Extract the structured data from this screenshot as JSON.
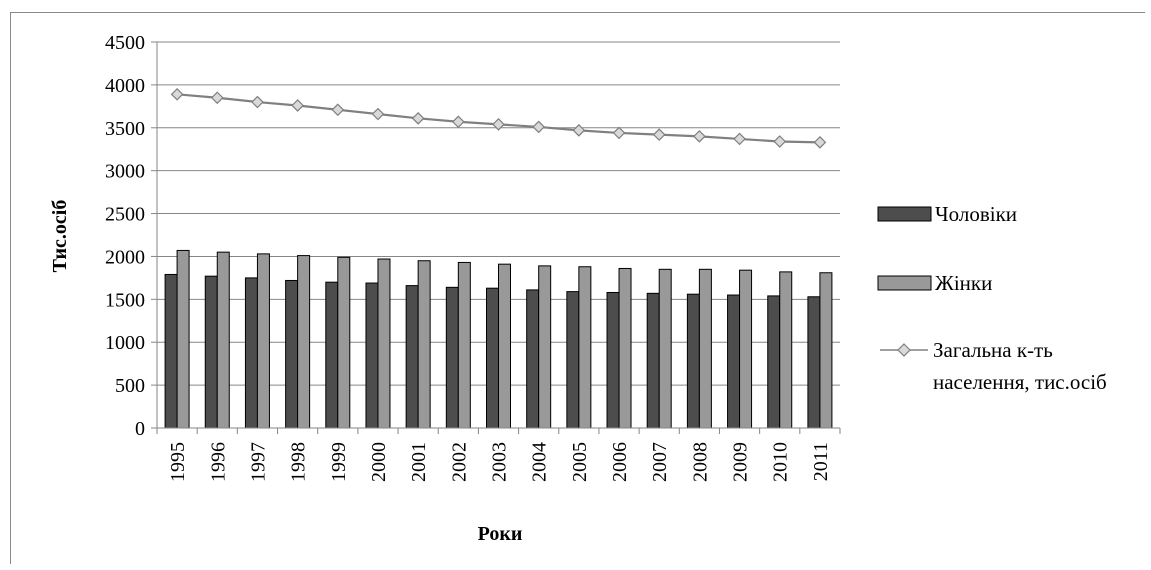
{
  "chart_data": {
    "type": "bar",
    "xlabel": "Роки",
    "ylabel": "Тис.осіб",
    "ylim": [
      0,
      4500
    ],
    "yticks": [
      "0",
      "500",
      "1000",
      "1500",
      "2000",
      "2500",
      "3000",
      "3500",
      "4000",
      "4500"
    ],
    "categories": [
      "1995",
      "1996",
      "1997",
      "1998",
      "1999",
      "2000",
      "2001",
      "2002",
      "2003",
      "2004",
      "2005",
      "2006",
      "2007",
      "2008",
      "2009",
      "2010",
      "2011"
    ],
    "grid": true,
    "legend_position": "right",
    "series": [
      {
        "name": "Чоловіки",
        "kind": "bar",
        "color": "#4d4d4d",
        "values": [
          1790,
          1770,
          1750,
          1720,
          1700,
          1690,
          1660,
          1640,
          1630,
          1610,
          1590,
          1580,
          1570,
          1560,
          1550,
          1540,
          1530
        ]
      },
      {
        "name": "Жінки",
        "kind": "bar",
        "color": "#999999",
        "values": [
          2070,
          2050,
          2030,
          2010,
          1990,
          1970,
          1950,
          1930,
          1910,
          1890,
          1880,
          1860,
          1850,
          1850,
          1840,
          1820,
          1810
        ]
      },
      {
        "name": "Загальна к-ть населення, тис.осіб",
        "name_lines": [
          "Загальна к-ть",
          "населення, тис.осіб"
        ],
        "kind": "line",
        "color": "#808080",
        "values": [
          3890,
          3850,
          3800,
          3760,
          3710,
          3660,
          3610,
          3570,
          3540,
          3510,
          3470,
          3440,
          3420,
          3400,
          3370,
          3340,
          3330
        ]
      }
    ]
  }
}
